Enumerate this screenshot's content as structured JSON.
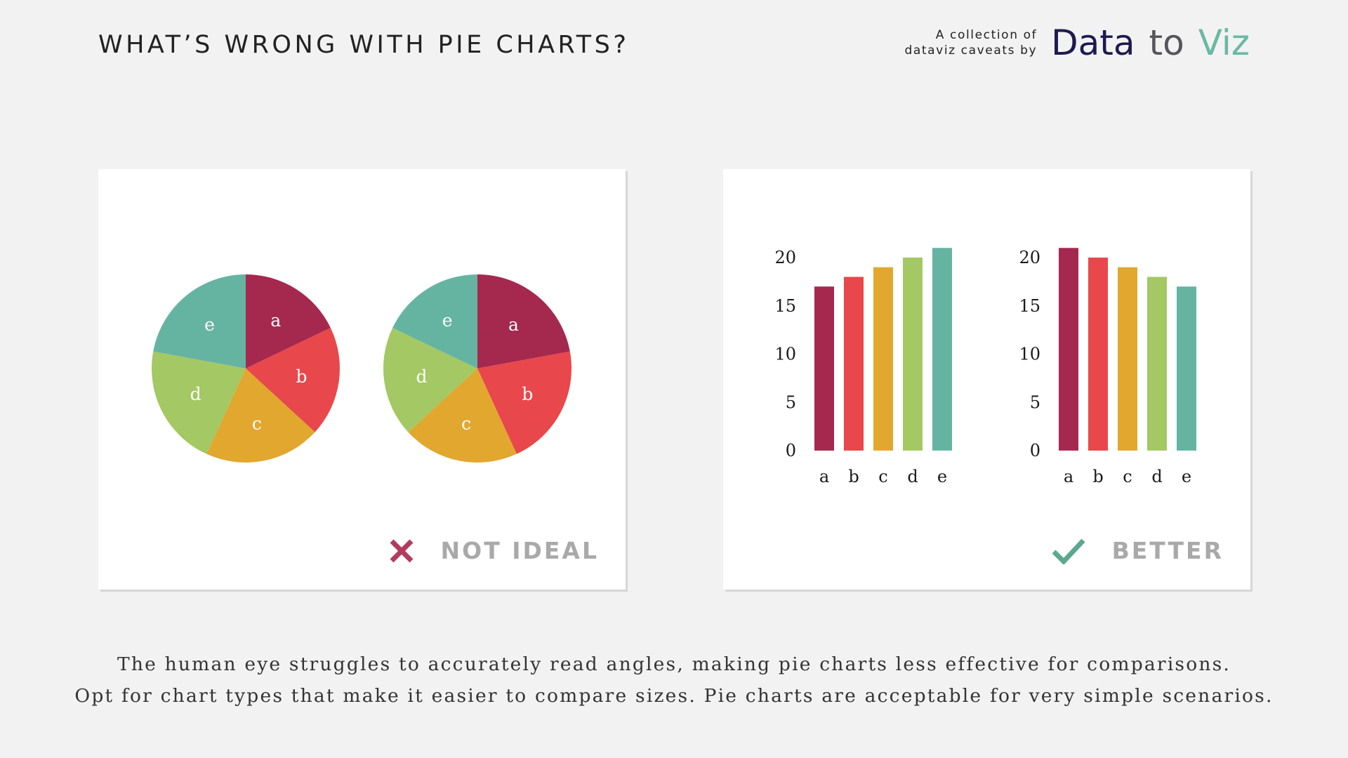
{
  "header": {
    "title": "WHAT’S WRONG WITH PIE CHARTS?",
    "brand_caption_line1": "A collection of",
    "brand_caption_line2": "dataviz caveats by",
    "logo_word1": "Data",
    "logo_word2": "to",
    "logo_word3": "Viz"
  },
  "colors": {
    "a": "#a5284e",
    "b": "#e8474b",
    "c": "#e2a72e",
    "d": "#a3c864",
    "e": "#65b4a1",
    "bad": "#b23c5e",
    "good": "#5aa88f",
    "verdict_text": "#a9a9a9"
  },
  "panels": {
    "bad": {
      "icon": "cross-icon",
      "label": "NOT IDEAL"
    },
    "good": {
      "icon": "check-icon",
      "label": "BETTER"
    }
  },
  "chart_data": [
    {
      "type": "pie",
      "categories": [
        "a",
        "b",
        "c",
        "d",
        "e"
      ],
      "values": [
        17,
        18,
        19,
        20,
        21
      ]
    },
    {
      "type": "pie",
      "categories": [
        "a",
        "b",
        "c",
        "d",
        "e"
      ],
      "values": [
        21,
        20,
        19,
        18,
        17
      ]
    },
    {
      "type": "bar",
      "categories": [
        "a",
        "b",
        "c",
        "d",
        "e"
      ],
      "values": [
        17,
        18,
        19,
        20,
        21
      ],
      "ylim": [
        0,
        20
      ],
      "yticks": [
        0,
        5,
        10,
        15,
        20
      ]
    },
    {
      "type": "bar",
      "categories": [
        "a",
        "b",
        "c",
        "d",
        "e"
      ],
      "values": [
        21,
        20,
        19,
        18,
        17
      ],
      "ylim": [
        0,
        20
      ],
      "yticks": [
        0,
        5,
        10,
        15,
        20
      ]
    }
  ],
  "caption": {
    "line1": "The human eye struggles to accurately read angles, making pie charts less effective for comparisons.",
    "line2": "Opt for chart types that make it easier to compare sizes. Pie charts are acceptable for very simple scenarios."
  }
}
